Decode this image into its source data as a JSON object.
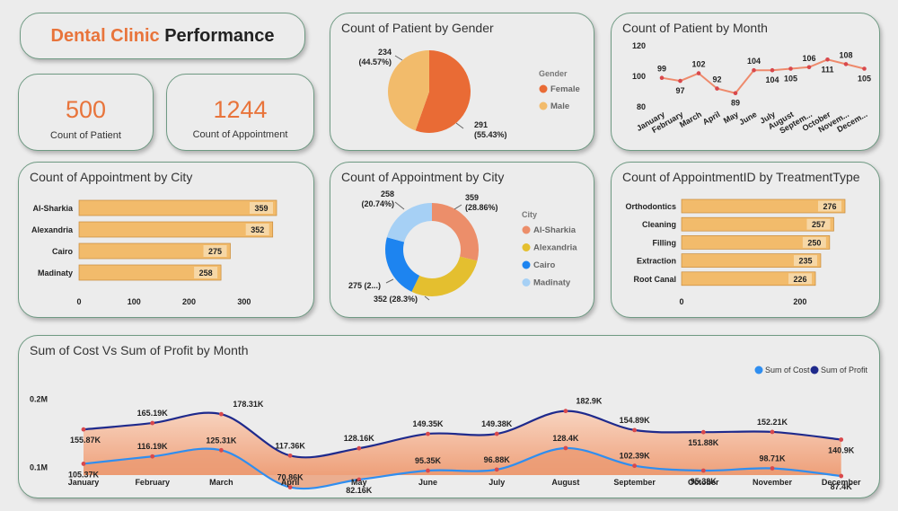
{
  "header": {
    "title_accent": "Dental Clinic",
    "title_rest": "Performance"
  },
  "kpis": [
    {
      "value": "500",
      "label": "Count of Patient"
    },
    {
      "value": "1244",
      "label": "Count of Appointment"
    }
  ],
  "colors": {
    "accent": "#e8743b",
    "bar": "#f2bb6b",
    "female": "#e96b35",
    "male": "#f2bb6b",
    "cost": "#2f8ef0",
    "profit": "#1f2a8c",
    "area": "#eda37c",
    "sharkia": "#ec8e6a",
    "alexandria": "#e4bf2f",
    "cairo": "#1d84f0",
    "madinaty": "#a6d0f5"
  },
  "chart_data": [
    {
      "id": "gender_pie",
      "type": "pie",
      "title": "Count of Patient by Gender",
      "legend_title": "Gender",
      "categories": [
        "Female",
        "Male"
      ],
      "values": [
        291,
        234
      ],
      "labels": [
        [
          "291",
          "(55.43%)"
        ],
        [
          "234",
          "(44.57%)"
        ]
      ]
    },
    {
      "id": "month_line",
      "type": "line",
      "title": "Count of Patient by Month",
      "categories": [
        "January",
        "February",
        "March",
        "April",
        "May",
        "June",
        "July",
        "August",
        "Septem...",
        "October",
        "Novem...",
        "Decem..."
      ],
      "values": [
        99,
        97,
        102,
        92,
        89,
        104,
        104,
        105,
        106,
        111,
        108,
        105
      ],
      "value_labels": [
        "99",
        "97",
        "102",
        "92",
        "89",
        "104",
        "104",
        "105",
        "106",
        "111",
        "108",
        "105"
      ],
      "yticks": [
        "120",
        "100",
        "80"
      ],
      "ylim": [
        80,
        120
      ]
    },
    {
      "id": "city_bar",
      "type": "bar",
      "orientation": "horizontal",
      "title": "Count of Appointment by City",
      "categories": [
        "Al-Sharkia",
        "Alexandria",
        "Cairo",
        "Madinaty"
      ],
      "values": [
        359,
        352,
        275,
        258
      ],
      "xticks": [
        "0",
        "100",
        "200",
        "300"
      ],
      "xlim": [
        0,
        359
      ]
    },
    {
      "id": "city_donut",
      "type": "pie",
      "title": "Count of Appointment by City",
      "legend_title": "City",
      "categories": [
        "Al-Sharkia",
        "Alexandria",
        "Cairo",
        "Madinaty"
      ],
      "values": [
        359,
        352,
        275,
        258
      ],
      "labels": [
        [
          "359",
          "(28.86%)"
        ],
        [
          "352 (28.3%)"
        ],
        [
          "275 (2...)"
        ],
        [
          "258",
          "(20.74%)"
        ]
      ]
    },
    {
      "id": "treatment_bar",
      "type": "bar",
      "orientation": "horizontal",
      "title": "Count of AppointmentID by TreatmentType",
      "categories": [
        "Orthodontics",
        "Cleaning",
        "Filling",
        "Extraction",
        "Root Canal"
      ],
      "values": [
        276,
        257,
        250,
        235,
        226
      ],
      "xticks": [
        "0",
        "200"
      ],
      "xlim": [
        0,
        276
      ]
    },
    {
      "id": "cost_profit",
      "type": "area",
      "title": "Sum of Cost Vs Sum of Profit by Month",
      "categories": [
        "January",
        "February",
        "March",
        "April",
        "May",
        "June",
        "July",
        "August",
        "September",
        "October",
        "November",
        "December"
      ],
      "series": [
        {
          "name": "Sum of Cost",
          "values": [
            105.37,
            116.19,
            125.31,
            70.86,
            82.16,
            95.35,
            96.88,
            128.4,
            102.39,
            95.38,
            98.71,
            87.4
          ],
          "labels": [
            "105.37K",
            "116.19K",
            "125.31K",
            "70.86K",
            "82.16K",
            "95.35K",
            "96.88K",
            "128.4K",
            "102.39K",
            "95.38K",
            "98.71K",
            "87.4K"
          ]
        },
        {
          "name": "Sum of Profit",
          "values": [
            155.87,
            165.19,
            178.31,
            117.36,
            128.16,
            149.35,
            149.38,
            182.9,
            154.89,
            151.88,
            152.21,
            140.9
          ],
          "labels": [
            "155.87K",
            "165.19K",
            "178.31K",
            "117.36K",
            "128.16K",
            "149.35K",
            "149.38K",
            "182.9K",
            "154.89K",
            "151.88K",
            "152.21K",
            "140.9K"
          ]
        }
      ],
      "yticks": [
        "0.2M",
        "0.1M"
      ],
      "units": "K"
    }
  ]
}
